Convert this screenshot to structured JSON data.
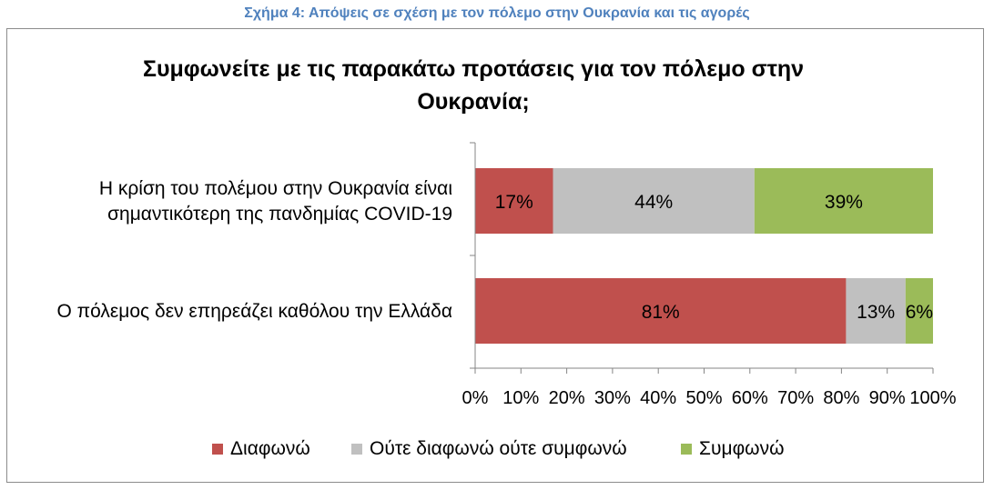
{
  "caption": "Σχήμα 4: Απόψεις σε σχέση με τον πόλεμο στην Ουκρανία και τις αγορές",
  "colors": {
    "disagree": "#c0504d",
    "neutral": "#c0c0c0",
    "agree": "#9bbb59",
    "caption": "#4f81bd"
  },
  "chart_data": {
    "type": "bar",
    "orientation": "horizontal",
    "stacked": "100%",
    "title_line1": "Συμφωνείτε με τις παρακάτω προτάσεις για τον πόλεμο στην",
    "title_line2": "Ουκρανία;",
    "categories": [
      [
        "Η κρίση του πολέμου στην Ουκρανία είναι",
        "σημαντικότερη της πανδημίας COVID-19"
      ],
      [
        "Ο πόλεμος δεν επηρεάζει καθόλου την Ελλάδα"
      ]
    ],
    "series": [
      {
        "name": "Διαφωνώ",
        "values": [
          17,
          81
        ],
        "labels": [
          "17%",
          "81%"
        ]
      },
      {
        "name": "Ούτε διαφωνώ ούτε συμφωνώ",
        "values": [
          44,
          13
        ],
        "labels": [
          "44%",
          "13%"
        ]
      },
      {
        "name": "Συμφωνώ",
        "values": [
          39,
          6
        ],
        "labels": [
          "39%",
          "6%"
        ]
      }
    ],
    "xlim": [
      0,
      100
    ],
    "xticks": [
      "0%",
      "10%",
      "20%",
      "30%",
      "40%",
      "50%",
      "60%",
      "70%",
      "80%",
      "90%",
      "100%"
    ],
    "grid": false,
    "legend_position": "bottom"
  }
}
